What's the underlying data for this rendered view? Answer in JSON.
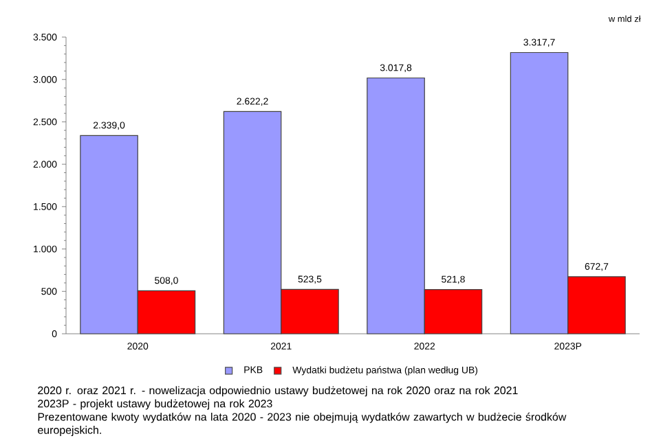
{
  "chart_data": {
    "type": "bar",
    "categories": [
      "2020",
      "2021",
      "2022",
      "2023P"
    ],
    "series": [
      {
        "name": "PKB",
        "color": "#9999ff",
        "values": [
          2339.0,
          2622.2,
          3017.8,
          3317.7
        ],
        "value_labels": [
          "2.339,0",
          "2.622,2",
          "3.017,8",
          "3.317,7"
        ]
      },
      {
        "name": "Wydatki budżetu państwa (plan według UB)",
        "color": "#ff0000",
        "values": [
          508.0,
          523.5,
          521.8,
          672.7
        ],
        "value_labels": [
          "508,0",
          "523,5",
          "521,8",
          "672,7"
        ]
      }
    ],
    "ylim": [
      0,
      3500
    ],
    "yticks": [
      {
        "value": 0,
        "label": "0"
      },
      {
        "value": 500,
        "label": "500"
      },
      {
        "value": 1000,
        "label": "1.000"
      },
      {
        "value": 1500,
        "label": "1.500"
      },
      {
        "value": 2000,
        "label": "2.000"
      },
      {
        "value": 2500,
        "label": "2.500"
      },
      {
        "value": 3000,
        "label": "3.000"
      },
      {
        "value": 3500,
        "label": "3.500"
      }
    ],
    "legend": "bottom",
    "annotations": [
      "w mld zł",
      "2020 r. oraz 2021 r. - nowelizacja odpowiednio ustawy budżetowej na rok 2020 oraz na rok 2021",
      "2023P - projekt ustawy budżetowej na rok 2023",
      "Prezentowane kwoty wydatków na lata 2020 - 2023 nie obejmują wydatków zawartych w budżecie środków europejskich."
    ]
  }
}
